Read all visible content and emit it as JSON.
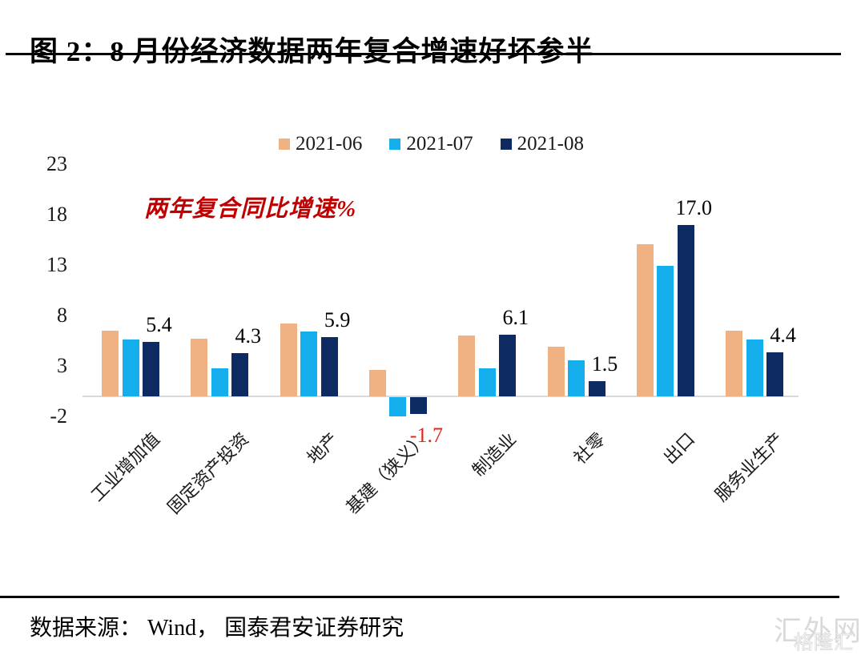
{
  "title": "图 2：8 月份经济数据两年复合增速好坏参半",
  "footer": {
    "source": "数据来源： Wind， 国泰君安证券研究",
    "watermark": "汇外网",
    "watermark_overlay": "格隆汇"
  },
  "chart_data": {
    "type": "bar",
    "title": "图 2：8 月份经济数据两年复合增速好坏参半",
    "annotation": "两年复合同比增速%",
    "annotation_color": "#c00000",
    "xlabel": "",
    "ylabel": "两年复合同比增速%",
    "categories": [
      "工业增加值",
      "固定资产投资",
      "地产",
      "基建（狭义）",
      "制造业",
      "社零",
      "出口",
      "服务业生产"
    ],
    "series": [
      {
        "name": "2021-06",
        "color": "#f0b183",
        "values": [
          6.5,
          5.7,
          7.2,
          2.6,
          6.0,
          4.9,
          15.1,
          6.5
        ]
      },
      {
        "name": "2021-07",
        "color": "#14aeec",
        "values": [
          5.6,
          2.8,
          6.4,
          -1.9,
          2.8,
          3.6,
          12.9,
          5.6
        ]
      },
      {
        "name": "2021-08",
        "color": "#0e2a63",
        "values": [
          5.4,
          4.3,
          5.9,
          -1.7,
          6.1,
          1.5,
          17.0,
          4.4
        ]
      }
    ],
    "data_labels": {
      "series": "2021-08",
      "values": [
        "5.4",
        "4.3",
        "5.9",
        "-1.7",
        "6.1",
        "1.5",
        "17.0",
        "4.4"
      ],
      "color": "#000000",
      "negative_color": "#e8221a"
    },
    "y_ticks": [
      23,
      18,
      13,
      8,
      3,
      -2
    ],
    "ylim": [
      -2,
      23
    ],
    "grid": false,
    "legend_position": "top",
    "baseline_color": "#d9d9d9"
  }
}
